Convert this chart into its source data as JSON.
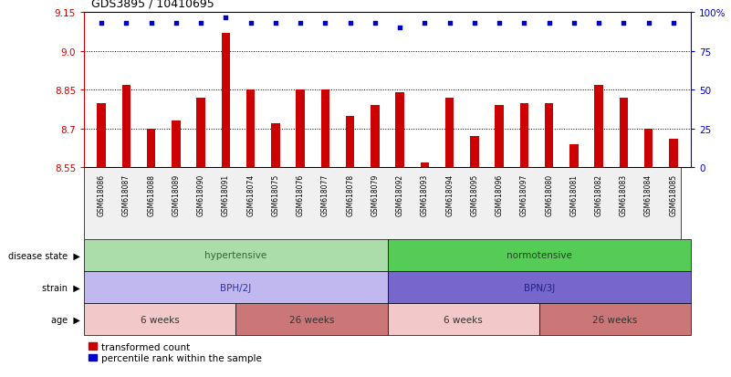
{
  "title": "GDS3895 / 10410695",
  "samples": [
    "GSM618086",
    "GSM618087",
    "GSM618088",
    "GSM618089",
    "GSM618090",
    "GSM618091",
    "GSM618074",
    "GSM618075",
    "GSM618076",
    "GSM618077",
    "GSM618078",
    "GSM618079",
    "GSM618092",
    "GSM618093",
    "GSM618094",
    "GSM618095",
    "GSM618096",
    "GSM618097",
    "GSM618080",
    "GSM618081",
    "GSM618082",
    "GSM618083",
    "GSM618084",
    "GSM618085"
  ],
  "bar_values": [
    8.8,
    8.87,
    8.7,
    8.73,
    8.82,
    9.07,
    8.85,
    8.72,
    8.85,
    8.85,
    8.75,
    8.79,
    8.84,
    8.57,
    8.82,
    8.67,
    8.79,
    8.8,
    8.8,
    8.64,
    8.87,
    8.82,
    8.7,
    8.66
  ],
  "percentile_values": [
    93,
    93,
    93,
    93,
    93,
    97,
    93,
    93,
    93,
    93,
    93,
    93,
    90,
    93,
    93,
    93,
    93,
    93,
    93,
    93,
    93,
    93,
    93,
    93
  ],
  "bar_color": "#cc0000",
  "dot_color": "#0000cc",
  "ylim_left": [
    8.55,
    9.15
  ],
  "ylim_right": [
    0,
    100
  ],
  "yticks_left": [
    8.55,
    8.7,
    8.85,
    9.0,
    9.15
  ],
  "yticks_right": [
    0,
    25,
    50,
    75,
    100
  ],
  "grid_values": [
    8.7,
    8.85,
    9.0
  ],
  "annotation_rows": [
    {
      "label": "disease state",
      "segments": [
        {
          "text": "hypertensive",
          "start": 0,
          "end": 12,
          "color": "#aaddaa",
          "textcolor": "#336633"
        },
        {
          "text": "normotensive",
          "start": 12,
          "end": 24,
          "color": "#55cc55",
          "textcolor": "#224422"
        }
      ]
    },
    {
      "label": "strain",
      "segments": [
        {
          "text": "BPH/2J",
          "start": 0,
          "end": 12,
          "color": "#c0b8ee",
          "textcolor": "#333399"
        },
        {
          "text": "BPN/3J",
          "start": 12,
          "end": 24,
          "color": "#7766cc",
          "textcolor": "#222288"
        }
      ]
    },
    {
      "label": "age",
      "segments": [
        {
          "text": "6 weeks",
          "start": 0,
          "end": 6,
          "color": "#f2c8c8",
          "textcolor": "#333333"
        },
        {
          "text": "26 weeks",
          "start": 6,
          "end": 12,
          "color": "#cc7777",
          "textcolor": "#333333"
        },
        {
          "text": "6 weeks",
          "start": 12,
          "end": 18,
          "color": "#f2c8c8",
          "textcolor": "#333333"
        },
        {
          "text": "26 weeks",
          "start": 18,
          "end": 24,
          "color": "#cc7777",
          "textcolor": "#333333"
        }
      ]
    }
  ],
  "legend_items": [
    {
      "label": "transformed count",
      "color": "#cc0000"
    },
    {
      "label": "percentile rank within the sample",
      "color": "#0000cc"
    }
  ],
  "bg_color": "#f0f0f0"
}
